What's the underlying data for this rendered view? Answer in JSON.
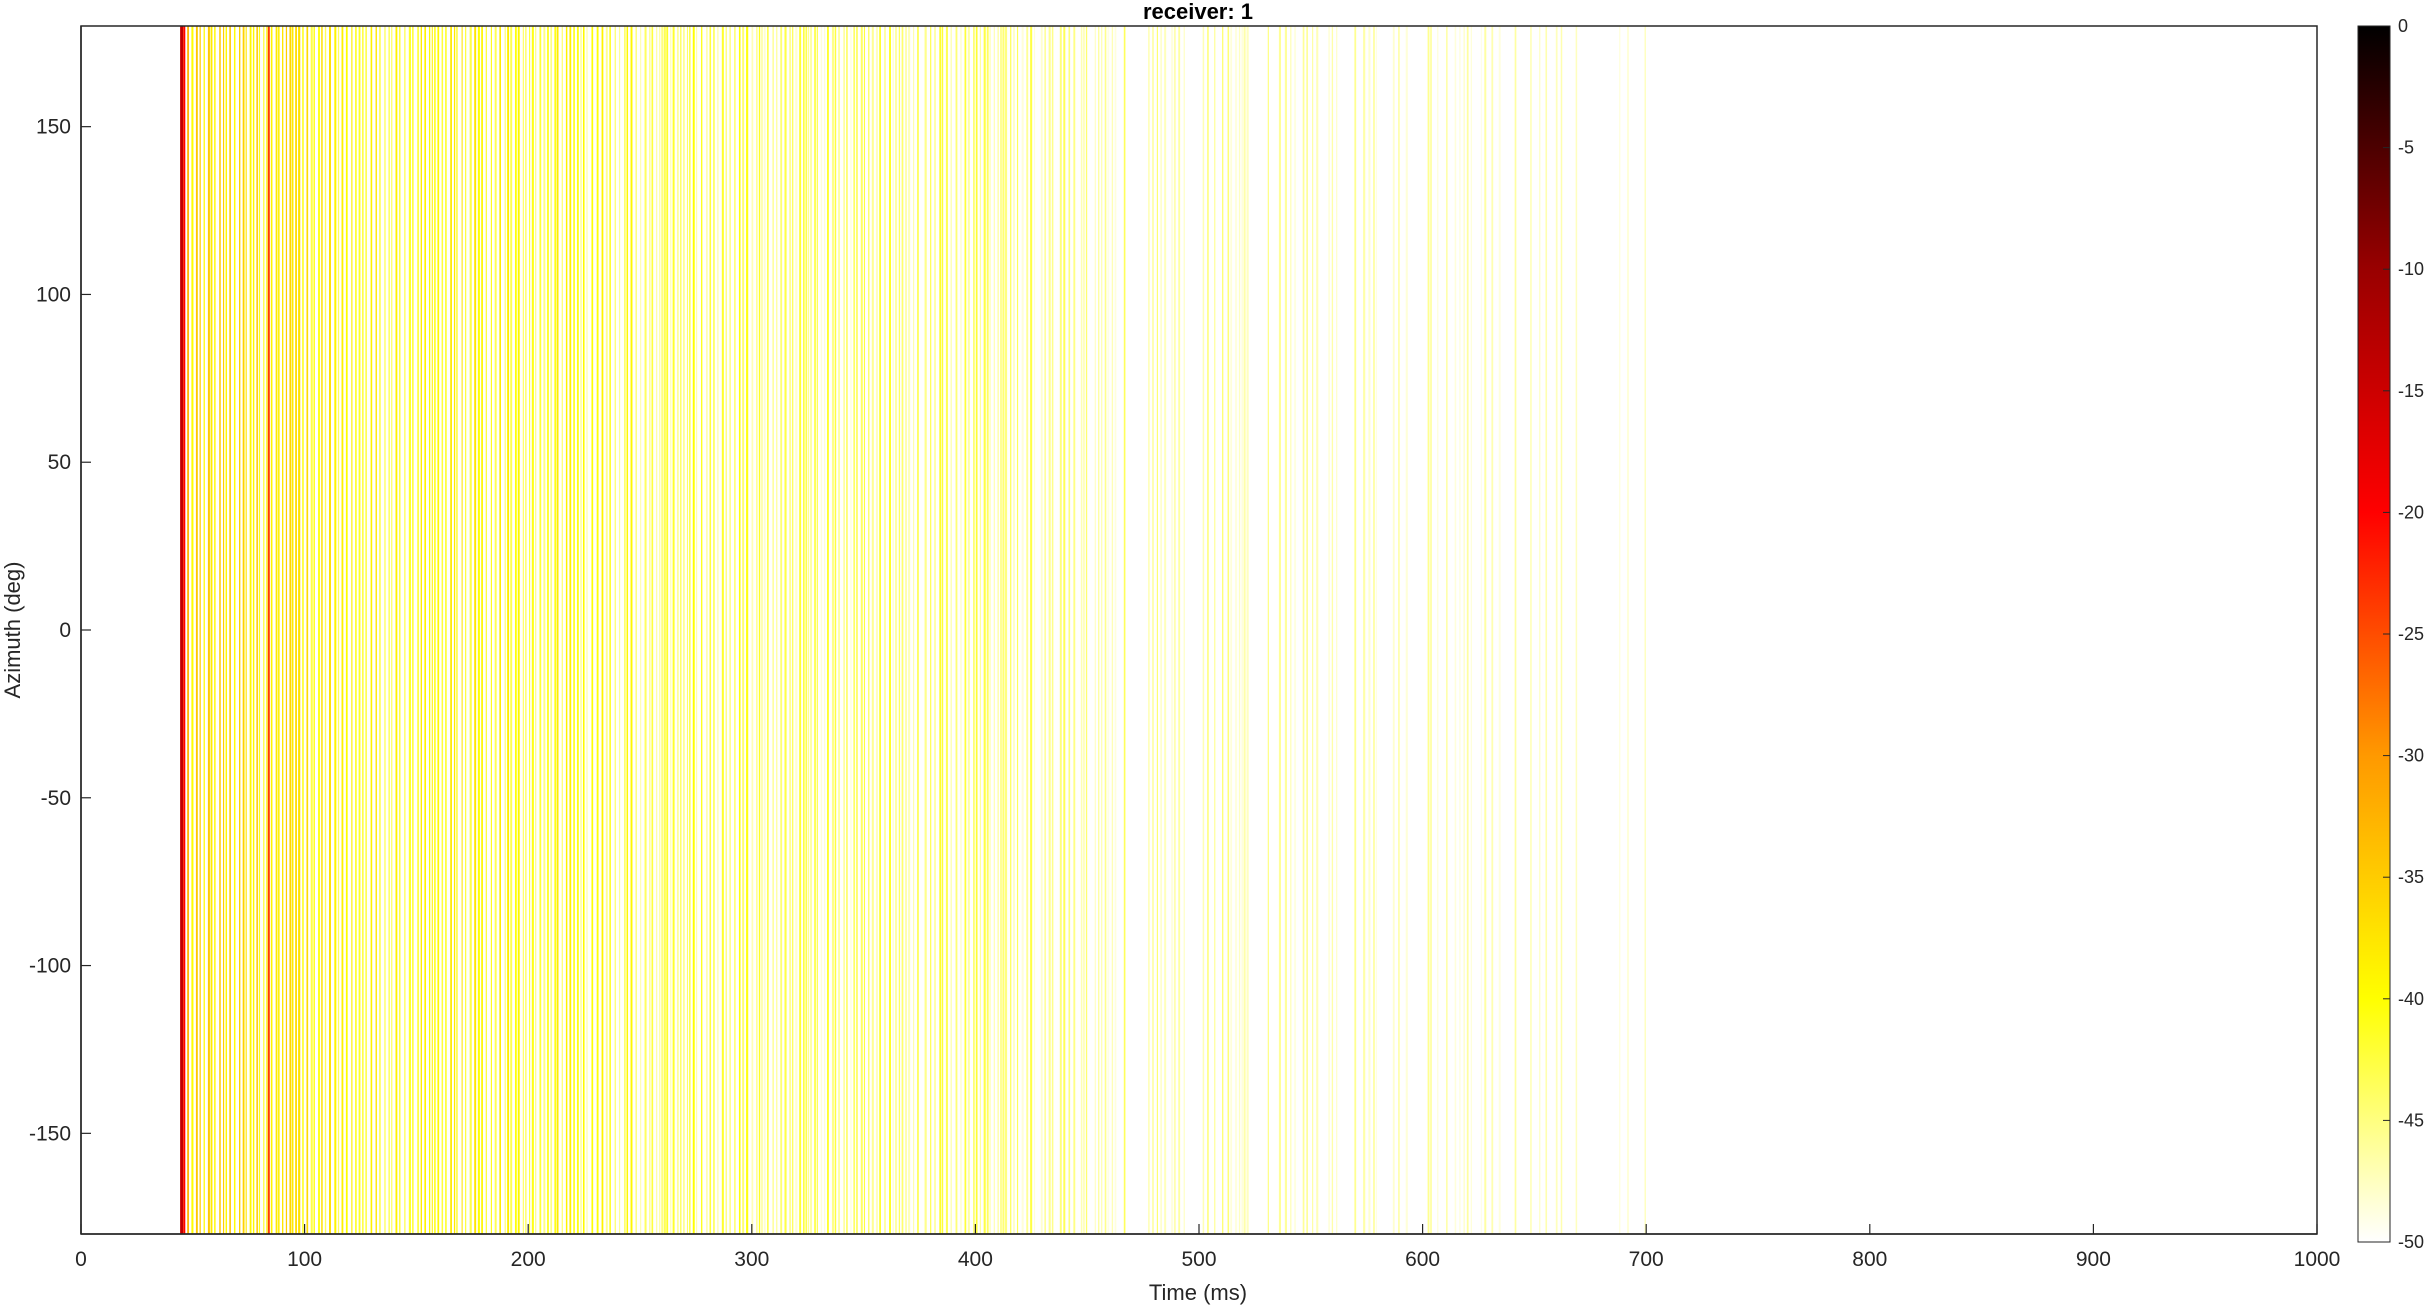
{
  "chart_data": {
    "type": "heatmap",
    "title": "receiver: 1",
    "xlabel": "Time (ms)",
    "ylabel": "Azimuth (deg)",
    "xlim": [
      0,
      1000
    ],
    "ylim": [
      -180,
      180
    ],
    "xticks": [
      0,
      100,
      200,
      300,
      400,
      500,
      600,
      700,
      800,
      900,
      1000
    ],
    "yticks": [
      -150,
      -100,
      -50,
      0,
      50,
      100,
      150
    ],
    "colorbar": {
      "min": -50,
      "max": 0,
      "ticks": [
        0,
        -5,
        -10,
        -15,
        -20,
        -25,
        -30,
        -35,
        -40,
        -45,
        -50
      ],
      "colormap": "hot (reversed)",
      "colors": [
        "#ffffff",
        "#ffff00",
        "#ff9900",
        "#ff0000",
        "#990000",
        "#000000"
      ]
    },
    "description_values": {
      "direct_arrival_ms": 45,
      "secondary_arrival_ms": 84,
      "decay_end_ms": 700,
      "early_level_db": -36,
      "late_level_db": -50
    },
    "grid": false
  }
}
